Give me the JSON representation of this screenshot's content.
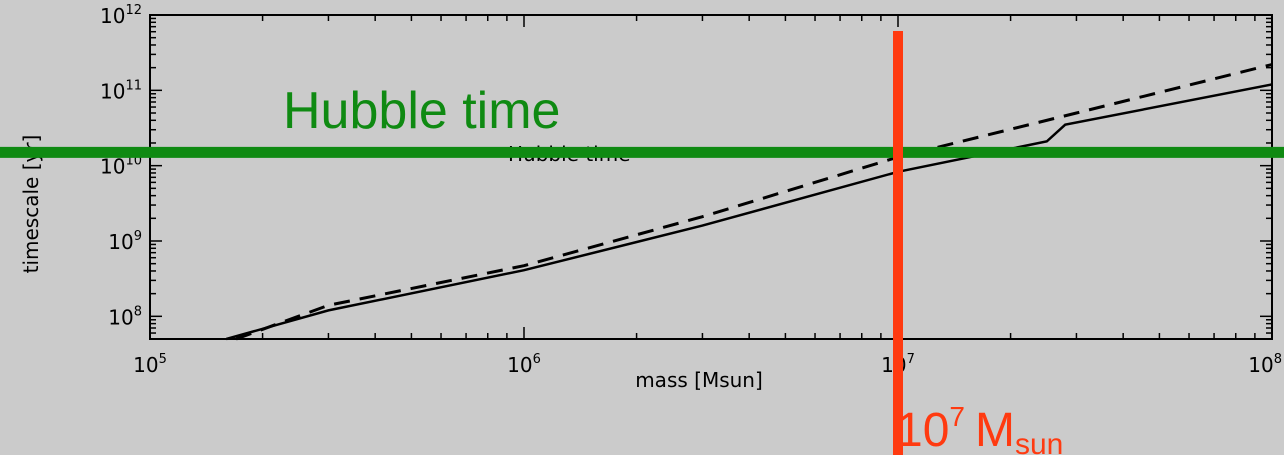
{
  "chart_data": {
    "type": "line",
    "xlabel": "mass [Msun]",
    "ylabel": "timescale [yr]",
    "x_scale": "log",
    "y_scale": "log",
    "xlim": [
      100000,
      100000000
    ],
    "ylim": [
      50000000,
      1000000000000
    ],
    "x_ticks": [
      100000,
      1000000,
      10000000,
      100000000
    ],
    "y_ticks": [
      100000000,
      1000000000,
      10000000000,
      100000000000,
      1000000000000
    ],
    "grid": false,
    "series": [
      {
        "style": "solid",
        "color": "#000000",
        "points": [
          [
            160000,
            50000000
          ],
          [
            300000,
            120000000
          ],
          [
            1000000,
            410000000
          ],
          [
            3000000,
            1600000000
          ],
          [
            10000000,
            8300000000
          ],
          [
            25000000,
            21000000000
          ],
          [
            28000000,
            35000000000
          ],
          [
            100000000,
            120000000000
          ]
        ]
      },
      {
        "style": "dashed",
        "color": "#000000",
        "points": [
          [
            170000,
            50000000
          ],
          [
            300000,
            140000000
          ],
          [
            1000000,
            470000000
          ],
          [
            3000000,
            2100000000
          ],
          [
            10000000,
            13000000000
          ],
          [
            30000000,
            50000000000
          ],
          [
            100000000,
            220000000000
          ]
        ]
      }
    ],
    "reference_lines": [
      {
        "orientation": "horizontal",
        "value": 15000000000,
        "color": "#0f8a12",
        "label": "Hubble time"
      },
      {
        "orientation": "vertical",
        "value": 10000000,
        "color": "#ff3a10"
      }
    ],
    "annotations": {
      "hubble_small": "Hubble time",
      "hubble_big": "Hubble time",
      "mass_base": "10",
      "mass_exp": "7",
      "mass_unit": "M",
      "mass_sub": "sun"
    }
  }
}
